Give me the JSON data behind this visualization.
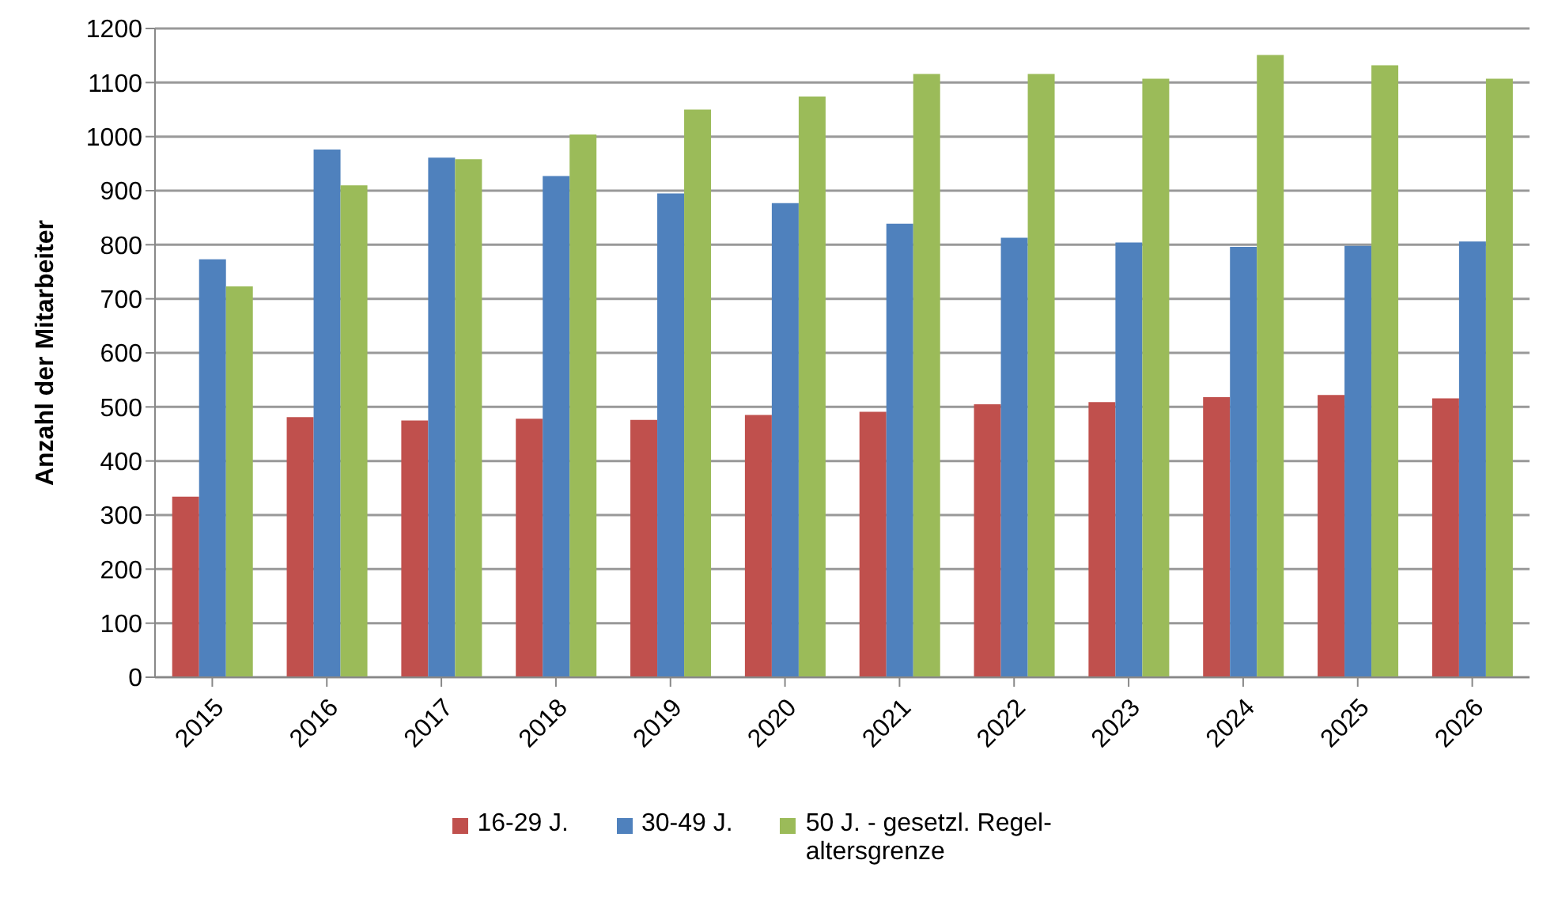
{
  "chart_data": {
    "type": "bar",
    "ylabel": "Anzahl der Mitarbeiter",
    "categories": [
      "2015",
      "2016",
      "2017",
      "2018",
      "2019",
      "2020",
      "2021",
      "2022",
      "2023",
      "2024",
      "2025",
      "2026"
    ],
    "series": [
      {
        "name": "16-29 J.",
        "color": "#c0504d",
        "values": [
          334,
          481,
          475,
          478,
          476,
          485,
          491,
          505,
          509,
          518,
          522,
          516
        ]
      },
      {
        "name": "30-49 J.",
        "color": "#4f81bd",
        "values": [
          773,
          976,
          961,
          927,
          895,
          877,
          839,
          813,
          804,
          796,
          798,
          806
        ]
      },
      {
        "name": "50 J. - gesetzl. Regel-altersgrenze",
        "color": "#9bbb59",
        "values": [
          723,
          910,
          958,
          1004,
          1050,
          1074,
          1116,
          1116,
          1107,
          1151,
          1132,
          1107
        ]
      }
    ],
    "ylim": [
      0,
      1200
    ],
    "yticks": [
      0,
      100,
      200,
      300,
      400,
      500,
      600,
      700,
      800,
      900,
      1000,
      1100,
      1200
    ],
    "grid": "y",
    "legend": "bottom"
  }
}
